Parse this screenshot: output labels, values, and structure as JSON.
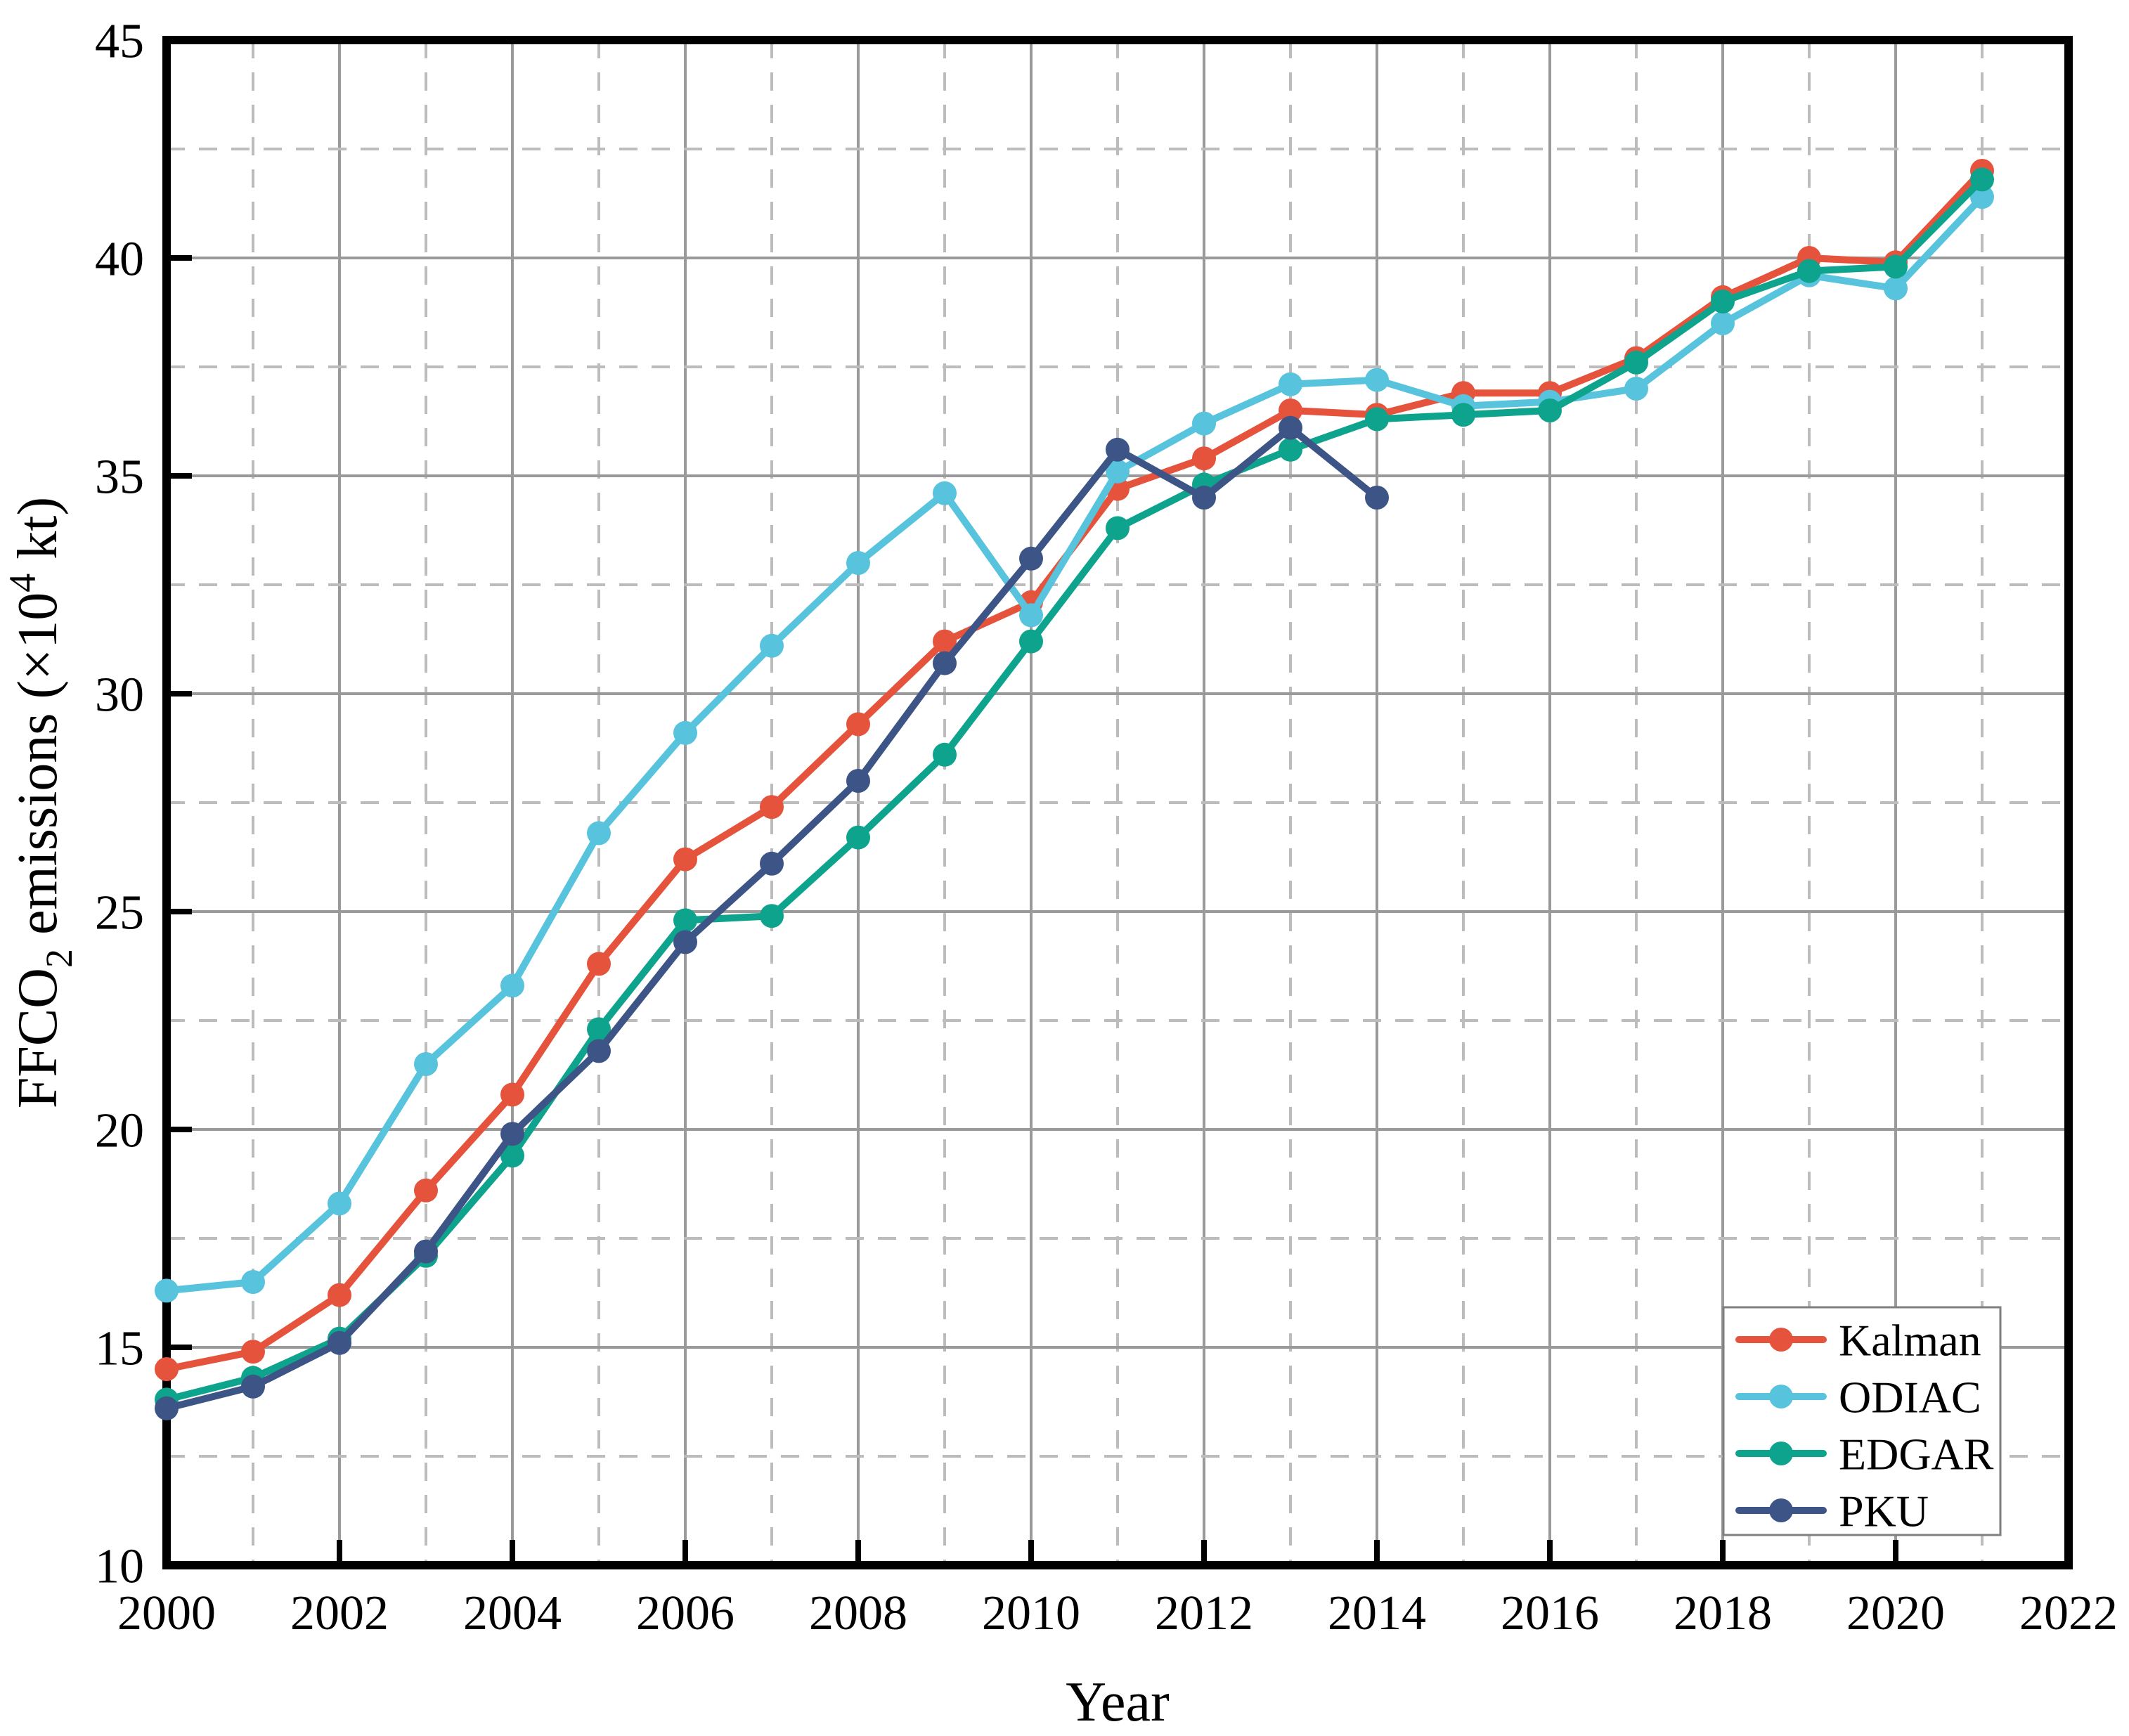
{
  "figure": {
    "background": "#ffffff",
    "plot_frame_color": "#000000",
    "grid_major_color": "#9a9a9a",
    "grid_minor_color": "#bcbcbc",
    "legend_border_color": "#7f7f7f"
  },
  "chart_data": {
    "type": "line",
    "title": "",
    "xlabel": "Year",
    "ylabel": "FFCO2 emissions (×10^4 kt)",
    "ylabel_parts": [
      {
        "text": "FFCO",
        "script": "normal"
      },
      {
        "text": "2",
        "script": "sub"
      },
      {
        "text": " emissions (×10",
        "script": "normal"
      },
      {
        "text": "4",
        "script": "sup"
      },
      {
        "text": " kt)",
        "script": "normal"
      }
    ],
    "xlim": [
      2000,
      2022
    ],
    "ylim": [
      10,
      45
    ],
    "x_major_ticks": [
      2000,
      2002,
      2004,
      2006,
      2008,
      2010,
      2012,
      2014,
      2016,
      2018,
      2020,
      2022
    ],
    "x_tick_labels": [
      "2000",
      "2002",
      "2004",
      "2006",
      "2008",
      "2010",
      "2012",
      "2014",
      "2016",
      "2018",
      "2020",
      "2022"
    ],
    "y_major_ticks": [
      10,
      15,
      20,
      25,
      30,
      35,
      40,
      45
    ],
    "y_tick_labels": [
      "10",
      "15",
      "20",
      "25",
      "30",
      "35",
      "40",
      "45"
    ],
    "grid": {
      "major": "solid",
      "minor": "dashed",
      "x_minor_step": 1,
      "y_minor_step": 2.5
    },
    "legend_position": "lower right",
    "x": [
      2000,
      2001,
      2002,
      2003,
      2004,
      2005,
      2006,
      2007,
      2008,
      2009,
      2010,
      2011,
      2012,
      2013,
      2014,
      2015,
      2016,
      2017,
      2018,
      2019,
      2020,
      2021
    ],
    "series": [
      {
        "name": "Kalman",
        "color": "#E5533C",
        "values": [
          14.5,
          14.9,
          16.2,
          18.6,
          20.8,
          23.8,
          26.2,
          27.4,
          29.3,
          31.2,
          32.1,
          34.7,
          35.4,
          36.5,
          36.4,
          36.9,
          36.9,
          37.7,
          39.1,
          40.0,
          39.9,
          42.0
        ]
      },
      {
        "name": "ODIAC",
        "color": "#57C3DC",
        "values": [
          16.3,
          16.5,
          18.3,
          21.5,
          23.3,
          26.8,
          29.1,
          31.1,
          33.0,
          34.6,
          31.8,
          35.1,
          36.2,
          37.1,
          37.2,
          36.6,
          36.7,
          37.0,
          38.5,
          39.6,
          39.3,
          41.4
        ]
      },
      {
        "name": "EDGAR",
        "color": "#0EA38C",
        "values": [
          13.8,
          14.3,
          15.2,
          17.1,
          19.4,
          22.3,
          24.8,
          24.9,
          26.7,
          28.6,
          31.2,
          33.8,
          34.8,
          35.6,
          36.3,
          36.4,
          36.5,
          37.6,
          39.0,
          39.7,
          39.8,
          41.8
        ]
      },
      {
        "name": "PKU",
        "color": "#3D5486",
        "values": [
          13.6,
          14.1,
          15.1,
          17.2,
          19.9,
          21.8,
          24.3,
          26.1,
          28.0,
          30.7,
          33.1,
          35.6,
          34.5,
          36.1,
          34.5
        ]
      }
    ]
  }
}
